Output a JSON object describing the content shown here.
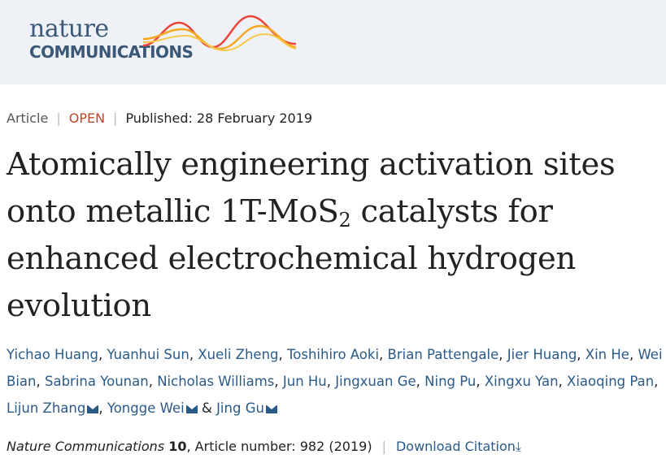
{
  "header": {
    "logo_line1": "nature",
    "logo_line2": "COMMUNICATIONS"
  },
  "meta": {
    "type": "Article",
    "access": "OPEN",
    "published": "Published: 28 February 2019"
  },
  "title": {
    "part1": "Atomically engineering activation sites onto metallic 1T-MoS",
    "subscript": "2",
    "part2": " catalysts for enhanced electrochemical hydrogen evolution"
  },
  "authors": [
    "Yichao Huang",
    "Yuanhui Sun",
    "Xueli Zheng",
    "Toshihiro Aoki",
    "Brian Pattengale",
    "Jier Huang",
    "Xin He",
    "Wei Bian",
    "Sabrina Younan",
    "Nicholas Williams",
    "Jun Hu",
    "Jingxuan Ge",
    "Ning Pu",
    "Xingxu Yan",
    "Xiaoqing Pan",
    "Lijun Zhang",
    "Yongge Wei",
    "Jing Gu"
  ],
  "citation": {
    "journal": "Nature Communications",
    "volume": "10",
    "article": ", Article number: 982 (2019)",
    "download": "Download Citation"
  },
  "colors": {
    "brand": "#3b5876",
    "open": "#c2462b",
    "link": "#2a5a8a"
  }
}
